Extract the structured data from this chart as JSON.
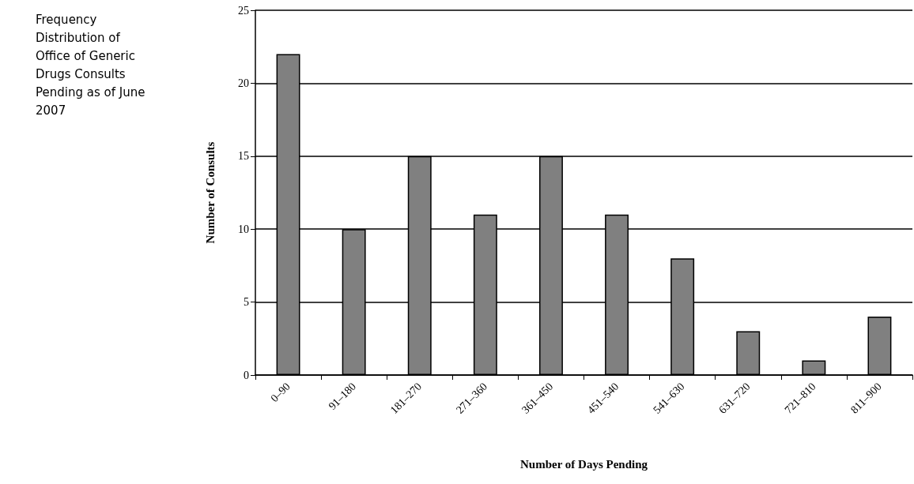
{
  "chart_data": {
    "type": "bar",
    "title": "Frequency Distribution of Office of Generic Drugs Consults Pending as of June 2007",
    "xlabel": "Number of Days Pending",
    "ylabel": "Number of Consults",
    "categories": [
      "0–90",
      "91–180",
      "181–270",
      "271–360",
      "361–450",
      "451–540",
      "541–630",
      "631–720",
      "721–810",
      "811–900"
    ],
    "values": [
      22,
      10,
      15,
      11,
      15,
      11,
      8,
      3,
      1,
      4
    ],
    "color": "#808080",
    "ylim": [
      0,
      25
    ],
    "yticks": [
      0,
      5,
      10,
      15,
      20,
      25
    ],
    "grid": "y"
  }
}
